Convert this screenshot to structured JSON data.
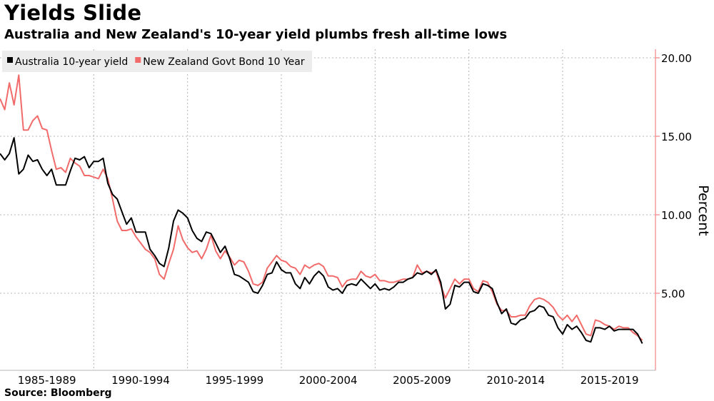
{
  "header": {
    "title": "Yields Slide",
    "subtitle": "Australia and New Zealand's 10-year yield plumbs fresh all-time lows"
  },
  "footer": {
    "source": "Source: Bloomberg"
  },
  "colors": {
    "australia": "#000000",
    "new_zealand": "#f26b6b",
    "grid": "#b4b4b4",
    "axis": "#f26b6b",
    "legend_bg": "#ececec"
  },
  "chart_data": {
    "type": "line",
    "title": "Yields Slide",
    "subtitle": "Australia and New Zealand's 10-year yield plumbs fresh all-time lows",
    "ylabel": "Percent",
    "ylim": [
      0.5,
      21
    ],
    "yticks": [
      "20.00",
      "15.00",
      "10.00",
      "5.00"
    ],
    "ytick_values": [
      20,
      15,
      10,
      5
    ],
    "xlim": [
      1985.0,
      2019.95
    ],
    "xtick_labels": [
      "1985-1989",
      "1990-1994",
      "1995-1999",
      "2000-2004",
      "2005-2009",
      "2010-2014",
      "2015-2019"
    ],
    "xtick_centers": [
      1987.5,
      1992.5,
      1997.5,
      2002.5,
      2007.5,
      2012.5,
      2017.5
    ],
    "xgrid": [
      1990,
      1995,
      2000,
      2005,
      2010,
      2015
    ],
    "grid": true,
    "legend_position": "top-left",
    "series": [
      {
        "name": "Australia 10-year yield",
        "color": "#000000",
        "points": [
          [
            1985.0,
            13.9
          ],
          [
            1985.25,
            13.5
          ],
          [
            1985.5,
            13.9
          ],
          [
            1985.75,
            14.9
          ],
          [
            1986.0,
            12.6
          ],
          [
            1986.25,
            12.9
          ],
          [
            1986.5,
            13.8
          ],
          [
            1986.75,
            13.4
          ],
          [
            1987.0,
            13.5
          ],
          [
            1987.25,
            12.9
          ],
          [
            1987.5,
            12.5
          ],
          [
            1987.75,
            12.9
          ],
          [
            1988.0,
            11.9
          ],
          [
            1988.25,
            11.9
          ],
          [
            1988.5,
            11.9
          ],
          [
            1988.75,
            12.8
          ],
          [
            1989.0,
            13.6
          ],
          [
            1989.25,
            13.5
          ],
          [
            1989.5,
            13.7
          ],
          [
            1989.75,
            13.0
          ],
          [
            1990.0,
            13.4
          ],
          [
            1990.25,
            13.4
          ],
          [
            1990.5,
            13.6
          ],
          [
            1990.75,
            12.0
          ],
          [
            1991.0,
            11.3
          ],
          [
            1991.25,
            11.0
          ],
          [
            1991.5,
            10.2
          ],
          [
            1991.75,
            9.4
          ],
          [
            1992.0,
            9.8
          ],
          [
            1992.25,
            8.9
          ],
          [
            1992.5,
            8.9
          ],
          [
            1992.75,
            8.9
          ],
          [
            1993.0,
            7.8
          ],
          [
            1993.25,
            7.4
          ],
          [
            1993.5,
            6.9
          ],
          [
            1993.75,
            6.7
          ],
          [
            1994.0,
            7.9
          ],
          [
            1994.25,
            9.6
          ],
          [
            1994.5,
            10.3
          ],
          [
            1994.75,
            10.1
          ],
          [
            1995.0,
            9.8
          ],
          [
            1995.25,
            9.0
          ],
          [
            1995.5,
            8.5
          ],
          [
            1995.75,
            8.3
          ],
          [
            1996.0,
            8.9
          ],
          [
            1996.25,
            8.8
          ],
          [
            1996.5,
            8.2
          ],
          [
            1996.75,
            7.6
          ],
          [
            1997.0,
            8.0
          ],
          [
            1997.25,
            7.2
          ],
          [
            1997.5,
            6.2
          ],
          [
            1997.75,
            6.1
          ],
          [
            1998.0,
            5.9
          ],
          [
            1998.25,
            5.7
          ],
          [
            1998.5,
            5.1
          ],
          [
            1998.75,
            5.0
          ],
          [
            1999.0,
            5.5
          ],
          [
            1999.25,
            6.2
          ],
          [
            1999.5,
            6.3
          ],
          [
            1999.75,
            7.0
          ],
          [
            2000.0,
            6.5
          ],
          [
            2000.25,
            6.3
          ],
          [
            2000.5,
            6.3
          ],
          [
            2000.75,
            5.6
          ],
          [
            2001.0,
            5.3
          ],
          [
            2001.25,
            6.0
          ],
          [
            2001.5,
            5.6
          ],
          [
            2001.75,
            6.1
          ],
          [
            2002.0,
            6.4
          ],
          [
            2002.25,
            6.1
          ],
          [
            2002.5,
            5.4
          ],
          [
            2002.75,
            5.2
          ],
          [
            2003.0,
            5.3
          ],
          [
            2003.25,
            5.0
          ],
          [
            2003.5,
            5.5
          ],
          [
            2003.75,
            5.6
          ],
          [
            2004.0,
            5.5
          ],
          [
            2004.25,
            5.9
          ],
          [
            2004.5,
            5.6
          ],
          [
            2004.75,
            5.3
          ],
          [
            2005.0,
            5.6
          ],
          [
            2005.25,
            5.2
          ],
          [
            2005.5,
            5.3
          ],
          [
            2005.75,
            5.2
          ],
          [
            2006.0,
            5.4
          ],
          [
            2006.25,
            5.7
          ],
          [
            2006.5,
            5.7
          ],
          [
            2006.75,
            5.9
          ],
          [
            2007.0,
            6.0
          ],
          [
            2007.25,
            6.3
          ],
          [
            2007.5,
            6.2
          ],
          [
            2007.75,
            6.4
          ],
          [
            2008.0,
            6.2
          ],
          [
            2008.25,
            6.5
          ],
          [
            2008.5,
            5.7
          ],
          [
            2008.75,
            4.0
          ],
          [
            2009.0,
            4.3
          ],
          [
            2009.25,
            5.5
          ],
          [
            2009.5,
            5.4
          ],
          [
            2009.75,
            5.7
          ],
          [
            2010.0,
            5.7
          ],
          [
            2010.25,
            5.1
          ],
          [
            2010.5,
            5.0
          ],
          [
            2010.75,
            5.6
          ],
          [
            2011.0,
            5.5
          ],
          [
            2011.25,
            5.3
          ],
          [
            2011.5,
            4.4
          ],
          [
            2011.75,
            3.7
          ],
          [
            2012.0,
            4.0
          ],
          [
            2012.25,
            3.1
          ],
          [
            2012.5,
            3.0
          ],
          [
            2012.75,
            3.3
          ],
          [
            2013.0,
            3.4
          ],
          [
            2013.25,
            3.8
          ],
          [
            2013.5,
            3.9
          ],
          [
            2013.75,
            4.2
          ],
          [
            2014.0,
            4.1
          ],
          [
            2014.25,
            3.6
          ],
          [
            2014.5,
            3.5
          ],
          [
            2014.75,
            2.8
          ],
          [
            2015.0,
            2.4
          ],
          [
            2015.25,
            3.0
          ],
          [
            2015.5,
            2.7
          ],
          [
            2015.75,
            2.9
          ],
          [
            2016.0,
            2.5
          ],
          [
            2016.25,
            2.0
          ],
          [
            2016.5,
            1.9
          ],
          [
            2016.75,
            2.8
          ],
          [
            2017.0,
            2.8
          ],
          [
            2017.25,
            2.7
          ],
          [
            2017.5,
            2.9
          ],
          [
            2017.75,
            2.6
          ],
          [
            2018.0,
            2.7
          ],
          [
            2018.25,
            2.7
          ],
          [
            2018.5,
            2.7
          ],
          [
            2018.75,
            2.7
          ],
          [
            2019.0,
            2.4
          ],
          [
            2019.25,
            1.8
          ]
        ]
      },
      {
        "name": "New Zealand Govt Bond 10 Year",
        "color": "#f26b6b",
        "points": [
          [
            1985.0,
            17.4
          ],
          [
            1985.25,
            16.7
          ],
          [
            1985.5,
            18.4
          ],
          [
            1985.75,
            17.0
          ],
          [
            1986.0,
            18.9
          ],
          [
            1986.25,
            15.4
          ],
          [
            1986.5,
            15.4
          ],
          [
            1986.75,
            16.0
          ],
          [
            1987.0,
            16.3
          ],
          [
            1987.25,
            15.5
          ],
          [
            1987.5,
            15.4
          ],
          [
            1987.75,
            14.1
          ],
          [
            1988.0,
            12.9
          ],
          [
            1988.25,
            13.0
          ],
          [
            1988.5,
            12.7
          ],
          [
            1988.75,
            13.6
          ],
          [
            1989.0,
            13.3
          ],
          [
            1989.25,
            13.1
          ],
          [
            1989.5,
            12.5
          ],
          [
            1989.75,
            12.5
          ],
          [
            1990.0,
            12.4
          ],
          [
            1990.25,
            12.3
          ],
          [
            1990.5,
            12.9
          ],
          [
            1990.75,
            12.3
          ],
          [
            1991.0,
            11.0
          ],
          [
            1991.25,
            9.6
          ],
          [
            1991.5,
            9.0
          ],
          [
            1991.75,
            9.0
          ],
          [
            1992.0,
            9.1
          ],
          [
            1992.25,
            8.6
          ],
          [
            1992.5,
            8.2
          ],
          [
            1992.75,
            7.8
          ],
          [
            1993.0,
            7.6
          ],
          [
            1993.25,
            7.2
          ],
          [
            1993.5,
            6.2
          ],
          [
            1993.75,
            5.9
          ],
          [
            1994.0,
            6.9
          ],
          [
            1994.25,
            7.8
          ],
          [
            1994.5,
            9.3
          ],
          [
            1994.75,
            8.4
          ],
          [
            1995.0,
            7.9
          ],
          [
            1995.25,
            7.6
          ],
          [
            1995.5,
            7.7
          ],
          [
            1995.75,
            7.2
          ],
          [
            1996.0,
            7.8
          ],
          [
            1996.25,
            8.7
          ],
          [
            1996.5,
            7.7
          ],
          [
            1996.75,
            7.2
          ],
          [
            1997.0,
            7.7
          ],
          [
            1997.25,
            7.3
          ],
          [
            1997.5,
            6.8
          ],
          [
            1997.75,
            7.1
          ],
          [
            1998.0,
            7.0
          ],
          [
            1998.25,
            6.4
          ],
          [
            1998.5,
            5.6
          ],
          [
            1998.75,
            5.5
          ],
          [
            1999.0,
            5.7
          ],
          [
            1999.25,
            6.6
          ],
          [
            1999.5,
            7.0
          ],
          [
            1999.75,
            7.4
          ],
          [
            2000.0,
            7.1
          ],
          [
            2000.25,
            7.0
          ],
          [
            2000.5,
            6.7
          ],
          [
            2000.75,
            6.6
          ],
          [
            2001.0,
            6.2
          ],
          [
            2001.25,
            6.8
          ],
          [
            2001.5,
            6.6
          ],
          [
            2001.75,
            6.8
          ],
          [
            2002.0,
            6.9
          ],
          [
            2002.25,
            6.7
          ],
          [
            2002.5,
            6.1
          ],
          [
            2002.75,
            6.1
          ],
          [
            2003.0,
            6.0
          ],
          [
            2003.25,
            5.4
          ],
          [
            2003.5,
            5.8
          ],
          [
            2003.75,
            5.9
          ],
          [
            2004.0,
            5.9
          ],
          [
            2004.25,
            6.4
          ],
          [
            2004.5,
            6.1
          ],
          [
            2004.75,
            6.0
          ],
          [
            2005.0,
            6.2
          ],
          [
            2005.25,
            5.8
          ],
          [
            2005.5,
            5.8
          ],
          [
            2005.75,
            5.7
          ],
          [
            2006.0,
            5.7
          ],
          [
            2006.25,
            5.8
          ],
          [
            2006.5,
            5.9
          ],
          [
            2006.75,
            5.9
          ],
          [
            2007.0,
            6.0
          ],
          [
            2007.25,
            6.8
          ],
          [
            2007.5,
            6.3
          ],
          [
            2007.75,
            6.4
          ],
          [
            2008.0,
            6.3
          ],
          [
            2008.25,
            6.4
          ],
          [
            2008.5,
            5.5
          ],
          [
            2008.75,
            4.7
          ],
          [
            2009.0,
            5.3
          ],
          [
            2009.25,
            5.9
          ],
          [
            2009.5,
            5.6
          ],
          [
            2009.75,
            5.9
          ],
          [
            2010.0,
            5.9
          ],
          [
            2010.25,
            5.3
          ],
          [
            2010.5,
            5.1
          ],
          [
            2010.75,
            5.8
          ],
          [
            2011.0,
            5.7
          ],
          [
            2011.25,
            5.1
          ],
          [
            2011.5,
            4.3
          ],
          [
            2011.75,
            3.9
          ],
          [
            2012.0,
            3.9
          ],
          [
            2012.25,
            3.5
          ],
          [
            2012.5,
            3.5
          ],
          [
            2012.75,
            3.6
          ],
          [
            2013.0,
            3.6
          ],
          [
            2013.25,
            4.2
          ],
          [
            2013.5,
            4.6
          ],
          [
            2013.75,
            4.7
          ],
          [
            2014.0,
            4.6
          ],
          [
            2014.25,
            4.4
          ],
          [
            2014.5,
            4.1
          ],
          [
            2014.75,
            3.6
          ],
          [
            2015.0,
            3.3
          ],
          [
            2015.25,
            3.6
          ],
          [
            2015.5,
            3.2
          ],
          [
            2015.75,
            3.6
          ],
          [
            2016.0,
            3.0
          ],
          [
            2016.25,
            2.4
          ],
          [
            2016.5,
            2.3
          ],
          [
            2016.75,
            3.3
          ],
          [
            2017.0,
            3.2
          ],
          [
            2017.25,
            3.0
          ],
          [
            2017.5,
            2.9
          ],
          [
            2017.75,
            2.7
          ],
          [
            2018.0,
            2.9
          ],
          [
            2018.25,
            2.8
          ],
          [
            2018.5,
            2.8
          ],
          [
            2018.75,
            2.5
          ],
          [
            2019.0,
            2.3
          ],
          [
            2019.25,
            2.0
          ]
        ]
      }
    ]
  }
}
